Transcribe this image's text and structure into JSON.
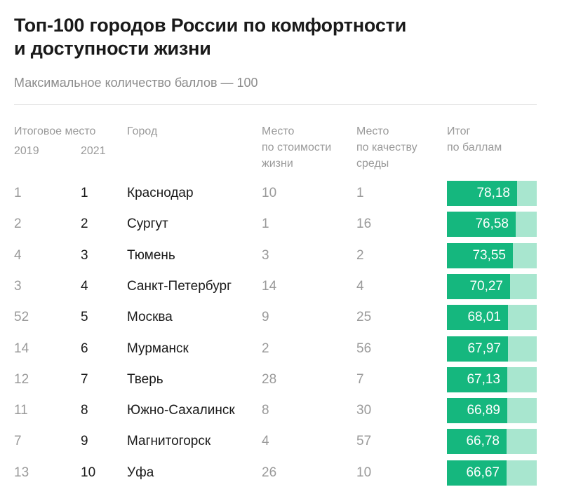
{
  "title_line1": "Топ-100 городов России по комфортности",
  "title_line2": "и доступности жизни",
  "subtitle": "Максимальное количество баллов — 100",
  "headers": {
    "final_place": "Итоговое место",
    "year_2019": "2019",
    "year_2021": "2021",
    "city": "Город",
    "cost_line1": "Место",
    "cost_line2": "по стоимости",
    "cost_line3": "жизни",
    "quality_line1": "Место",
    "quality_line2": "по качеству",
    "quality_line3": "среды",
    "total_line1": "Итог",
    "total_line2": "по баллам"
  },
  "colors": {
    "bar_fill": "#15b77e",
    "bar_track": "#a8e6cf"
  },
  "chart_data": {
    "type": "table",
    "max_score": 100,
    "rows": [
      {
        "place_2019": "1",
        "place_2021": "1",
        "city": "Краснодар",
        "cost_place": "10",
        "quality_place": "1",
        "score": "78,18",
        "score_value": 78.18
      },
      {
        "place_2019": "2",
        "place_2021": "2",
        "city": "Сургут",
        "cost_place": "1",
        "quality_place": "16",
        "score": "76,58",
        "score_value": 76.58
      },
      {
        "place_2019": "4",
        "place_2021": "3",
        "city": "Тюмень",
        "cost_place": "3",
        "quality_place": "2",
        "score": "73,55",
        "score_value": 73.55
      },
      {
        "place_2019": "3",
        "place_2021": "4",
        "city": "Санкт-Петербург",
        "cost_place": "14",
        "quality_place": "4",
        "score": "70,27",
        "score_value": 70.27
      },
      {
        "place_2019": "52",
        "place_2021": "5",
        "city": "Москва",
        "cost_place": "9",
        "quality_place": "25",
        "score": "68,01",
        "score_value": 68.01
      },
      {
        "place_2019": "14",
        "place_2021": "6",
        "city": "Мурманск",
        "cost_place": "2",
        "quality_place": "56",
        "score": "67,97",
        "score_value": 67.97
      },
      {
        "place_2019": "12",
        "place_2021": "7",
        "city": "Тверь",
        "cost_place": "28",
        "quality_place": "7",
        "score": "67,13",
        "score_value": 67.13
      },
      {
        "place_2019": "11",
        "place_2021": "8",
        "city": "Южно-Сахалинск",
        "cost_place": "8",
        "quality_place": "30",
        "score": "66,89",
        "score_value": 66.89
      },
      {
        "place_2019": "7",
        "place_2021": "9",
        "city": "Магнитогорск",
        "cost_place": "4",
        "quality_place": "57",
        "score": "66,78",
        "score_value": 66.78
      },
      {
        "place_2019": "13",
        "place_2021": "10",
        "city": "Уфа",
        "cost_place": "26",
        "quality_place": "10",
        "score": "66,67",
        "score_value": 66.67
      }
    ]
  }
}
